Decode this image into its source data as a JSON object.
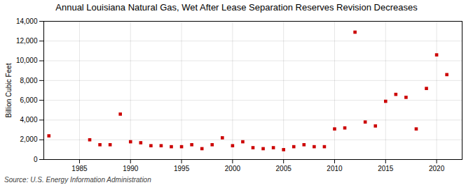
{
  "chart_data": {
    "type": "scatter",
    "title": "Annual Louisiana Natural Gas, Wet After Lease Separation Reserves Revision Decreases",
    "ylabel": "Billion Cubic Feet",
    "source": "Source: U.S. Energy Information Administration",
    "x": [
      1982,
      1986,
      1987,
      1988,
      1989,
      1990,
      1991,
      1992,
      1993,
      1994,
      1995,
      1996,
      1997,
      1998,
      1999,
      2000,
      2001,
      2002,
      2003,
      2004,
      2005,
      2006,
      2007,
      2008,
      2009,
      2010,
      2011,
      2012,
      2013,
      2014,
      2015,
      2016,
      2017,
      2018,
      2019,
      2020,
      2021
    ],
    "values": [
      2400,
      2000,
      1500,
      1500,
      4600,
      1800,
      1700,
      1400,
      1400,
      1300,
      1300,
      1500,
      1100,
      1500,
      2200,
      1400,
      1800,
      1200,
      1100,
      1200,
      1000,
      1300,
      1500,
      1300,
      1300,
      3100,
      3200,
      12900,
      3800,
      3400,
      5900,
      6600,
      6300,
      3100,
      7200,
      10600,
      8600
    ],
    "color": "#cc0000",
    "marker": "square",
    "xlim": [
      1981.5,
      2022.5
    ],
    "xticks": [
      1985,
      1990,
      1995,
      2000,
      2005,
      2010,
      2015,
      2020
    ],
    "ylim": [
      0,
      14000
    ],
    "yticks": [
      0,
      {
        "value": 2000,
        "label": "2,000"
      },
      {
        "value": 4000,
        "label": "4,000"
      },
      {
        "value": 6000,
        "label": "6,000"
      },
      {
        "value": 8000,
        "label": "8,000"
      },
      {
        "value": 10000,
        "label": "10,000"
      },
      {
        "value": 12000,
        "label": "12,000"
      },
      {
        "value": 14000,
        "label": "14,000"
      }
    ],
    "grid": true
  }
}
